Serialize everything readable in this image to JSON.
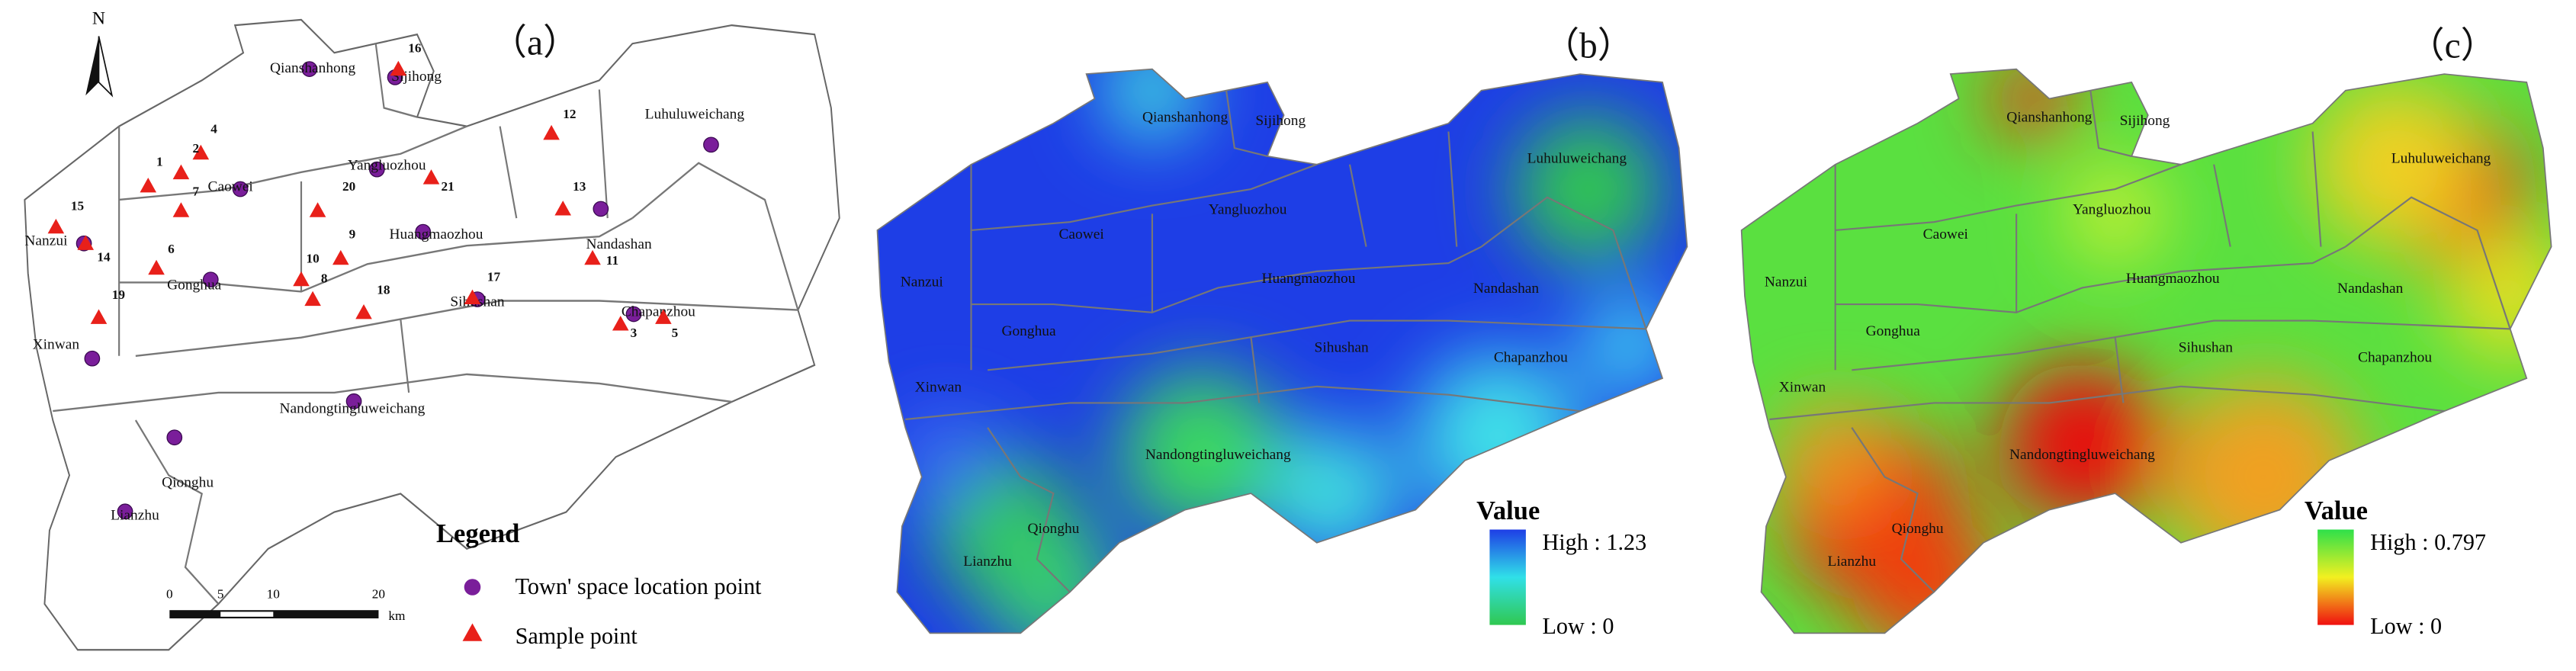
{
  "panels": [
    {
      "label": "（a）",
      "north": "N",
      "towns": [
        "Qianshanhong",
        "Sijihong",
        "Luhuluweichang",
        "Caowei",
        "Yangluozhou",
        "Huangmaozhou",
        "Nandashan",
        "Nanzui",
        "Gonghua",
        "Sihushan",
        "Chapanzhou",
        "Xinwan",
        "Nandongtingluweichang",
        "Qionghu",
        "Lianzhu"
      ],
      "sample_points": [
        "1",
        "2",
        "3",
        "4",
        "5",
        "6",
        "7",
        "8",
        "9",
        "10",
        "11",
        "12",
        "13",
        "14",
        "15",
        "16",
        "17",
        "18",
        "19",
        "20",
        "21"
      ],
      "legend": {
        "title": "Legend",
        "items": [
          "Town' space location point",
          "Sample point"
        ]
      },
      "scale_bar": {
        "ticks": [
          "0",
          "5",
          "10",
          "20"
        ],
        "unit": "km"
      }
    },
    {
      "label": "（b）",
      "towns": [
        "Qianshanhong",
        "Sijihong",
        "Luhuluweichang",
        "Caowei",
        "Yangluozhou",
        "Huangmaozhou",
        "Nandashan",
        "Nanzui",
        "Gonghua",
        "Sihushan",
        "Chapanzhou",
        "Xinwan",
        "Nandongtingluweichang",
        "Qionghu",
        "Lianzhu"
      ],
      "legend": {
        "title": "Value",
        "high": "High : 1.23",
        "low": "Low : 0"
      }
    },
    {
      "label": "（c）",
      "towns": [
        "Qianshanhong",
        "Sijihong",
        "Luhuluweichang",
        "Caowei",
        "Yangluozhou",
        "Huangmaozhou",
        "Nandashan",
        "Nanzui",
        "Gonghua",
        "Sihushan",
        "Chapanzhou",
        "Xinwan",
        "Nandongtingluweichang",
        "Qionghu",
        "Lianzhu"
      ],
      "legend": {
        "title": "Value",
        "high": "High : 0.797",
        "low": "Low : 0"
      }
    }
  ]
}
